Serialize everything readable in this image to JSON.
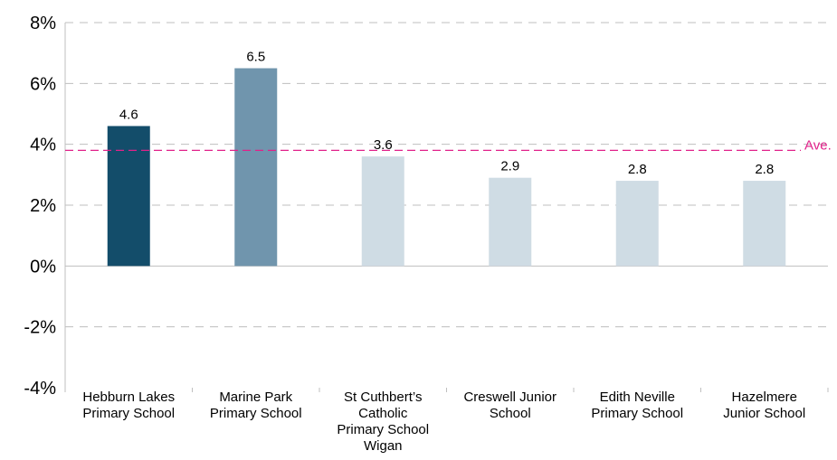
{
  "chart_data": {
    "type": "bar",
    "categories": [
      [
        "Hebburn Lakes",
        "Primary School"
      ],
      [
        "Marine Park",
        "Primary School"
      ],
      [
        "St Cuthbert’s",
        "Catholic",
        "Primary School",
        "Wigan"
      ],
      [
        "Creswell Junior",
        "School"
      ],
      [
        "Edith Neville",
        "Primary School"
      ],
      [
        "Hazelmere",
        "Junior School"
      ]
    ],
    "values": [
      4.6,
      6.5,
      3.6,
      2.9,
      2.8,
      2.8
    ],
    "data_labels": [
      "4.6",
      "6.5",
      "3.6",
      "2.9",
      "2.8",
      "2.8"
    ],
    "bar_colors": [
      "#134d6a",
      "#7095ad",
      "#cfdce4",
      "#cfdce4",
      "#cfdce4",
      "#cfdce4"
    ],
    "ylim": [
      -4,
      8
    ],
    "yticks": [
      -4,
      -2,
      0,
      2,
      4,
      6,
      8
    ],
    "ytick_labels": [
      "-4%",
      "-2%",
      "0%",
      "2%",
      "4%",
      "6%",
      "8%"
    ],
    "grid": true,
    "grid_color": "#bfbfbf",
    "reference_line": {
      "value": 3.8,
      "label": "Ave.",
      "color": "#e0218a"
    },
    "title": "",
    "xlabel": "",
    "ylabel": ""
  }
}
